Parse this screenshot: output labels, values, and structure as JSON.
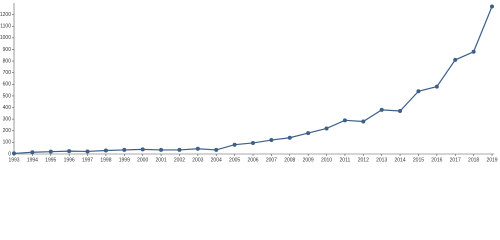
{
  "chart_data": {
    "type": "line",
    "x": [
      1993,
      1994,
      1995,
      1996,
      1997,
      1998,
      1999,
      2000,
      2001,
      2002,
      2003,
      2004,
      2005,
      2006,
      2007,
      2008,
      2009,
      2010,
      2011,
      2012,
      2013,
      2014,
      2015,
      2016,
      2017,
      2018,
      2019
    ],
    "values": [
      5,
      15,
      20,
      25,
      22,
      30,
      35,
      40,
      35,
      35,
      45,
      35,
      80,
      95,
      120,
      140,
      180,
      220,
      290,
      280,
      380,
      370,
      540,
      580,
      810,
      880,
      1270
    ],
    "color": "#3d5f8a",
    "xlim": [
      1993,
      2019
    ],
    "xticks": [
      1993,
      1994,
      1995,
      1996,
      1997,
      1998,
      1999,
      2000,
      2001,
      2002,
      2003,
      2004,
      2005,
      2006,
      2007,
      2008,
      2009,
      2010,
      2011,
      2012,
      2013,
      2014,
      2015,
      2016,
      2017,
      2018,
      2019
    ],
    "ylim": [
      0,
      1300
    ],
    "yticks": [
      0,
      100,
      200,
      300,
      400,
      500,
      600,
      700,
      800,
      900,
      1000,
      1100,
      1200
    ]
  }
}
